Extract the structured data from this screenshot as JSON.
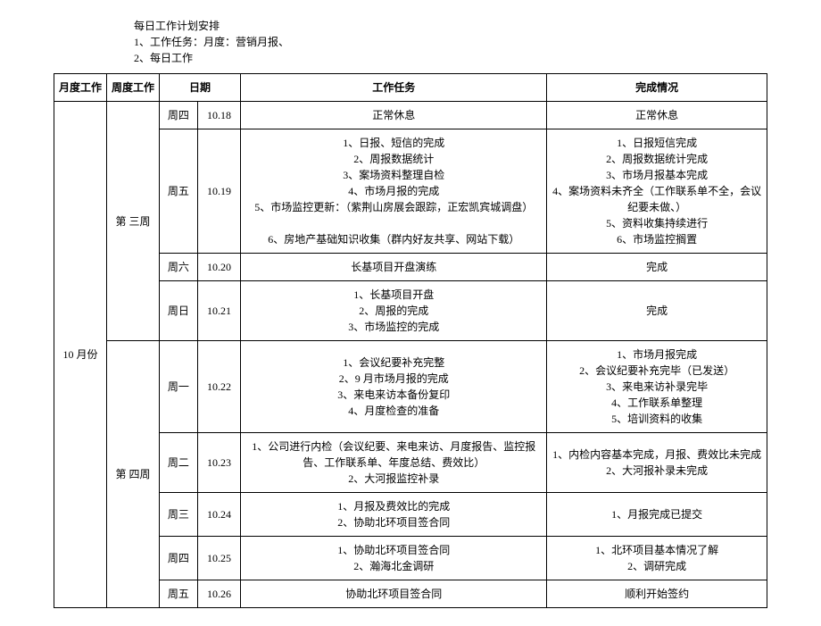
{
  "header": {
    "title": "每日工作计划安排",
    "line1": "1、工作任务：月度：营销月报、",
    "line2": "2、每日工作"
  },
  "columns": {
    "month": "月度工作",
    "week": "周度工作",
    "day": "日期",
    "date": "",
    "task": "工作任务",
    "status": "完成情况"
  },
  "month_label": "10 月份",
  "week3_label": "第 三周",
  "week4_label": "第 四周",
  "rows": [
    {
      "day": "周四",
      "date": "10.18",
      "task": [
        "正常休息"
      ],
      "status": [
        "正常休息"
      ]
    },
    {
      "day": "周五",
      "date": "10.19",
      "task": [
        "1、日报、短信的完成",
        "2、周报数据统计",
        "3、案场资料整理自检",
        "4、市场月报的完成",
        "5、市场监控更新：（紫荆山房展会跟踪，正宏凯宾城调盘）",
        "",
        "6、房地产基础知识收集（群内好友共享、网站下载）"
      ],
      "status": [
        "1、日报短信完成",
        "2、周报数据统计完成",
        "3、市场月报基本完成",
        "4、案场资料未齐全（工作联系单不全，会议纪要未做、）",
        "5、资料收集持续进行",
        "6、市场监控搁置"
      ]
    },
    {
      "day": "周六",
      "date": "10.20",
      "task": [
        "长基项目开盘演练"
      ],
      "status": [
        "完成"
      ]
    },
    {
      "day": "周日",
      "date": "10.21",
      "task": [
        "1、长基项目开盘",
        "2、周报的完成",
        "3、市场监控的完成"
      ],
      "status": [
        "完成"
      ]
    },
    {
      "day": "周一",
      "date": "10.22",
      "task": [
        "1、会议纪要补充完整",
        "2、9 月市场月报的完成",
        "3、来电来访本备份复印",
        "4、月度检查的准备"
      ],
      "status": [
        "1、市场月报完成",
        "2、会议纪要补充完毕（已发送）",
        "3、来电来访补录完毕",
        "4、工作联系单整理",
        "5、培训资料的收集"
      ]
    },
    {
      "day": "周二",
      "date": "10.23",
      "task": [
        "1、公司进行内检（会议纪要、来电来访、月度报告、监控报告、工作联系单、年度总结、费效比）",
        "2、大河报监控补录"
      ],
      "status": [
        "1、内检内容基本完成，月报、费效比未完成",
        "2、大河报补录未完成"
      ]
    },
    {
      "day": "周三",
      "date": "10.24",
      "task": [
        "1、月报及费效比的完成",
        "2、协助北环项目签合同"
      ],
      "status": [
        "1、月报完成已提交"
      ]
    },
    {
      "day": "周四",
      "date": "10.25",
      "task": [
        "1、协助北环项目签合同",
        "2、瀚海北金调研"
      ],
      "status": [
        "1、北环项目基本情况了解",
        "2、调研完成"
      ]
    },
    {
      "day": "周五",
      "date": "10.26",
      "task": [
        "协助北环项目签合同"
      ],
      "status": [
        "顺利开始签约"
      ]
    }
  ]
}
